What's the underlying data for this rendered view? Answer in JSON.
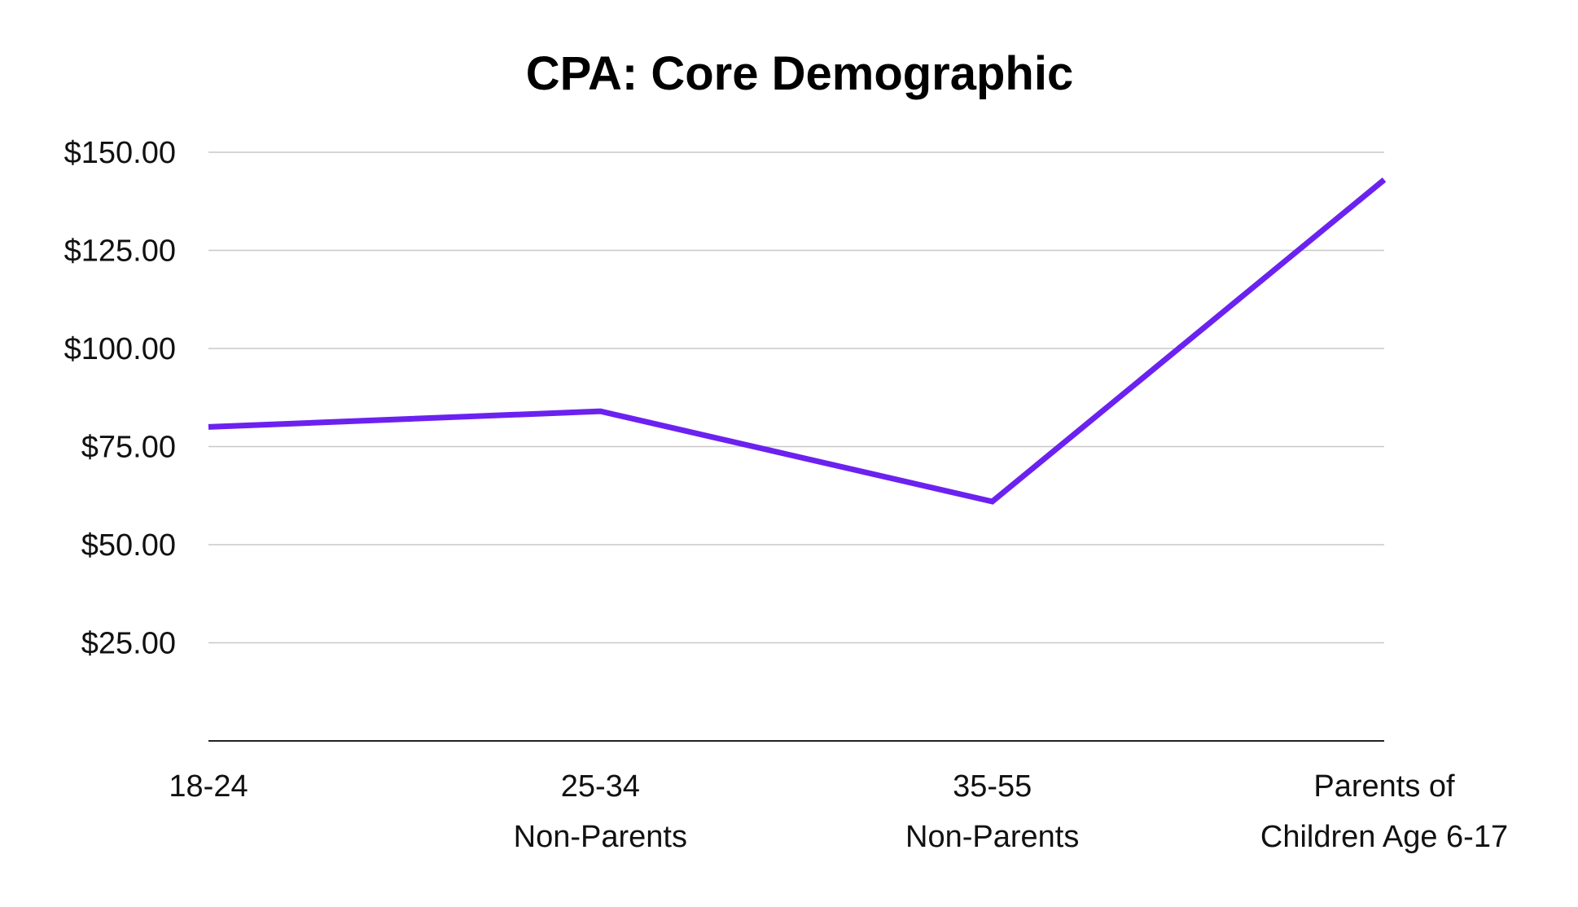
{
  "chart_data": {
    "type": "line",
    "title": "CPA: Core Demographic",
    "xlabel": "",
    "ylabel": "",
    "ylim": [
      0,
      150
    ],
    "yticks": [
      {
        "value": 25,
        "label": "$25.00"
      },
      {
        "value": 50,
        "label": "$50.00"
      },
      {
        "value": 75,
        "label": "$75.00"
      },
      {
        "value": 100,
        "label": "$100.00"
      },
      {
        "value": 125,
        "label": "$125.00"
      },
      {
        "value": 150,
        "label": "$150.00"
      }
    ],
    "categories": [
      [
        "18-24"
      ],
      [
        "25-34",
        "Non-Parents"
      ],
      [
        "35-55",
        "Non-Parents"
      ],
      [
        "Parents of",
        "Children Age 6-17"
      ]
    ],
    "series": [
      {
        "name": "CPA",
        "color": "#6b22f0",
        "values": [
          80,
          84,
          61,
          143
        ]
      }
    ],
    "grid": true,
    "legend": "none"
  }
}
